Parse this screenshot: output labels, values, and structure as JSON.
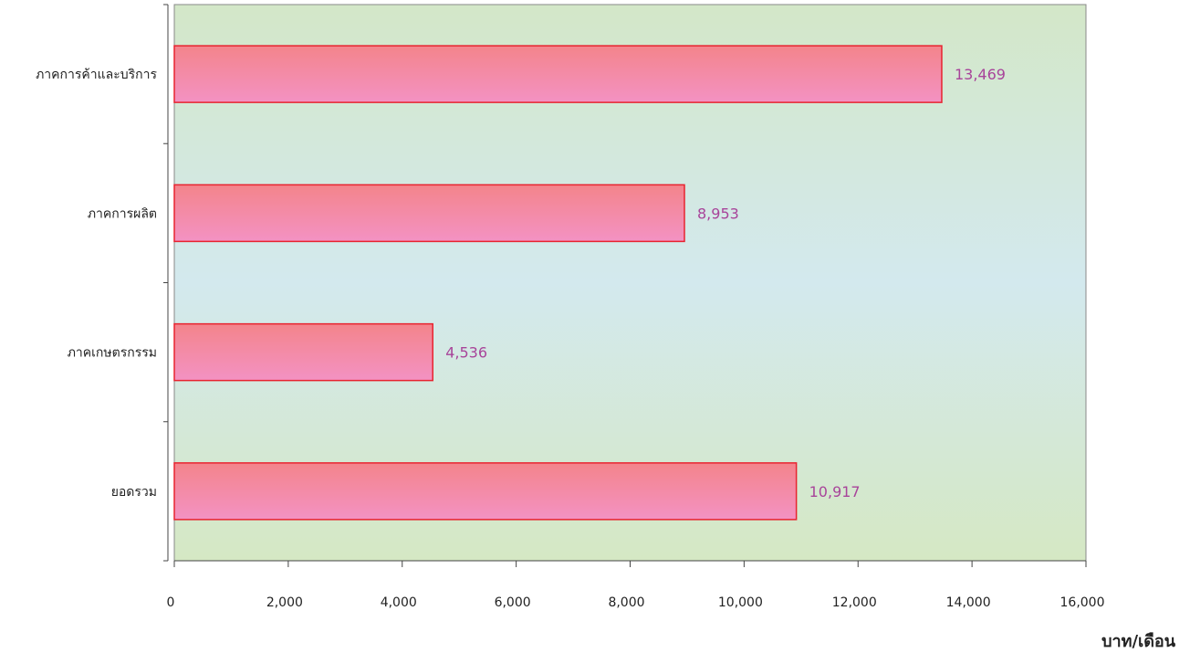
{
  "chart_data": {
    "type": "bar",
    "orientation": "horizontal",
    "categories": [
      "ภาคการค้าและบริการ",
      "ภาคการผลิต",
      "ภาคเกษตรกรรม",
      "ยอดรวม"
    ],
    "values": [
      13469,
      8953,
      4536,
      10917
    ],
    "value_labels": [
      "13,469",
      "8,953",
      "4,536",
      "10,917"
    ],
    "xlabel": "บาท/เดือน",
    "ylabel": "",
    "xlim": [
      0,
      16000
    ],
    "x_ticks": [
      0,
      2000,
      4000,
      6000,
      8000,
      10000,
      12000,
      14000,
      16000
    ],
    "x_tick_labels": [
      "0",
      "2,000",
      "4,000",
      "6,000",
      "8,000",
      "10,000",
      "12,000",
      "14,000",
      "16,000"
    ],
    "grid": false,
    "legend": "none"
  },
  "colors": {
    "plot_bg_top": "#d3e7c8",
    "plot_bg_mid": "#d3e9ee",
    "plot_bg_bottom": "#d5e8c4",
    "bar_top": "#f3848b",
    "bar_bottom": "#f392c3",
    "bar_stroke": "#e8232f",
    "value_label": "#a8449a",
    "axis": "#444444",
    "text": "#222222"
  }
}
